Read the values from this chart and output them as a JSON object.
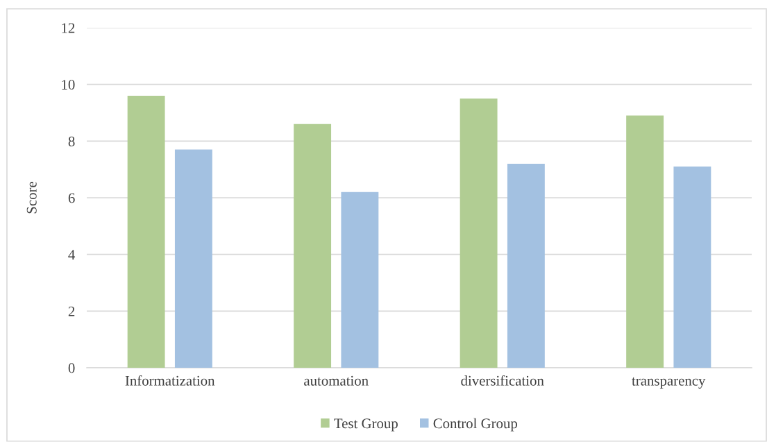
{
  "chart_data": {
    "type": "bar",
    "ylabel": "Score",
    "categories": [
      "Informatization",
      "automation",
      "diversification",
      "transparency"
    ],
    "series": [
      {
        "name": "Test Group",
        "color": "#b1cd93",
        "values": [
          9.6,
          8.6,
          9.5,
          8.9
        ]
      },
      {
        "name": "Control Group",
        "color": "#a3c1e1",
        "values": [
          7.7,
          6.2,
          7.2,
          7.1
        ]
      }
    ],
    "ylim": [
      0,
      12
    ],
    "yticks": [
      0,
      2,
      4,
      6,
      8,
      10,
      12
    ],
    "grid": "y",
    "legend": "bottom"
  }
}
